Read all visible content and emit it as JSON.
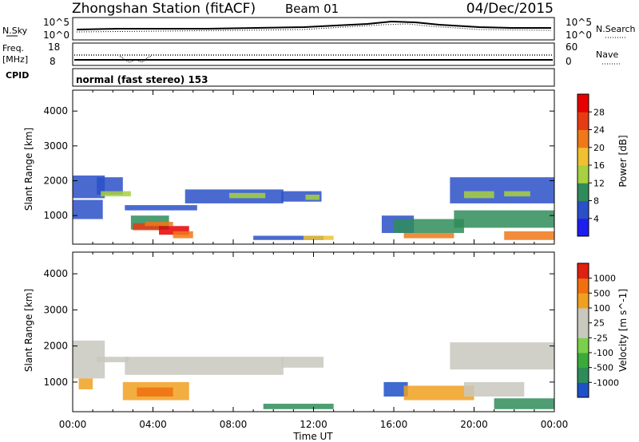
{
  "header": {
    "station": "Zhongshan Station (fitACF)",
    "beam": "Beam 01",
    "date": "04/Dec/2015"
  },
  "status_panels": {
    "nsky_label": "N.Sky",
    "nsky_ticks": [
      "10^5",
      "10^0"
    ],
    "nsearch_label": "N.Search",
    "nsearch_ticks": [
      "10^5",
      "10^0"
    ],
    "freq_label": "Freq.",
    "freq_unit": "[MHz]",
    "freq_ticks": [
      "18",
      "8"
    ],
    "nave_label": "Nave",
    "nave_ticks": [
      "60",
      "0"
    ],
    "cpid_label": "CPID",
    "cpid_text": "normal (fast stereo) 153"
  },
  "chart_data": [
    {
      "type": "heatmap",
      "name": "power",
      "ylabel": "Slant Range [km]",
      "yticks": [
        "1000",
        "2000",
        "3000",
        "4000"
      ],
      "ylim": [
        180,
        4600
      ],
      "xlim": [
        0,
        24
      ],
      "colorbar_label": "Power [dB]",
      "colorbar_ticks": [
        "4",
        "8",
        "12",
        "16",
        "20",
        "24",
        "28"
      ],
      "colorbar_colors": [
        "#1e1ef0",
        "#2a50c8",
        "#2f8c5a",
        "#a8d040",
        "#f0c030",
        "#f07818",
        "#e63c14",
        "#e60000"
      ],
      "regions": [
        {
          "t0": 0.0,
          "t1": 1.6,
          "r0": 1500,
          "r1": 2150,
          "c": "#2a50c8"
        },
        {
          "t0": 0.0,
          "t1": 1.5,
          "r0": 900,
          "r1": 1450,
          "c": "#2a50c8"
        },
        {
          "t0": 1.2,
          "t1": 2.5,
          "r0": 1600,
          "r1": 2100,
          "c": "#2a50c8"
        },
        {
          "t0": 1.4,
          "t1": 2.9,
          "r0": 1550,
          "r1": 1700,
          "c": "#a8d040"
        },
        {
          "t0": 2.6,
          "t1": 6.2,
          "r0": 1150,
          "r1": 1300,
          "c": "#2a50c8"
        },
        {
          "t0": 2.9,
          "t1": 4.8,
          "r0": 600,
          "r1": 1000,
          "c": "#2f8c5a"
        },
        {
          "t0": 3.0,
          "t1": 4.4,
          "r0": 580,
          "r1": 780,
          "c": "#e63c14"
        },
        {
          "t0": 3.6,
          "t1": 5.0,
          "r0": 700,
          "r1": 820,
          "c": "#f07818"
        },
        {
          "t0": 4.3,
          "t1": 5.8,
          "r0": 450,
          "r1": 700,
          "c": "#e60000"
        },
        {
          "t0": 5.0,
          "t1": 6.0,
          "r0": 350,
          "r1": 550,
          "c": "#f07818"
        },
        {
          "t0": 5.6,
          "t1": 10.5,
          "r0": 1350,
          "r1": 1750,
          "c": "#2a50c8"
        },
        {
          "t0": 7.8,
          "t1": 9.6,
          "r0": 1500,
          "r1": 1650,
          "c": "#a8d040"
        },
        {
          "t0": 10.4,
          "t1": 12.4,
          "r0": 1400,
          "r1": 1700,
          "c": "#2a50c8"
        },
        {
          "t0": 11.6,
          "t1": 12.3,
          "r0": 1450,
          "r1": 1600,
          "c": "#a8d040"
        },
        {
          "t0": 9.0,
          "t1": 12.5,
          "r0": 300,
          "r1": 420,
          "c": "#2a50c8"
        },
        {
          "t0": 11.5,
          "t1": 13.0,
          "r0": 300,
          "r1": 420,
          "c": "#f0c030"
        },
        {
          "t0": 15.4,
          "t1": 17.0,
          "r0": 500,
          "r1": 1000,
          "c": "#2a50c8"
        },
        {
          "t0": 16.0,
          "t1": 19.5,
          "r0": 500,
          "r1": 900,
          "c": "#2f8c5a"
        },
        {
          "t0": 16.5,
          "t1": 19.0,
          "r0": 350,
          "r1": 500,
          "c": "#f07818"
        },
        {
          "t0": 18.8,
          "t1": 24.0,
          "r0": 1350,
          "r1": 2100,
          "c": "#2a50c8"
        },
        {
          "t0": 19.5,
          "t1": 21.0,
          "r0": 1500,
          "r1": 1700,
          "c": "#a8d040"
        },
        {
          "t0": 21.5,
          "t1": 22.8,
          "r0": 1550,
          "r1": 1700,
          "c": "#a8d040"
        },
        {
          "t0": 19.0,
          "t1": 24.0,
          "r0": 650,
          "r1": 1150,
          "c": "#2f8c5a"
        },
        {
          "t0": 21.5,
          "t1": 24.0,
          "r0": 300,
          "r1": 550,
          "c": "#f07818"
        }
      ]
    },
    {
      "type": "heatmap",
      "name": "velocity",
      "ylabel": "Slant Range [km]",
      "yticks": [
        "1000",
        "2000",
        "3000",
        "4000"
      ],
      "ylim": [
        180,
        4600
      ],
      "xlim": [
        0,
        24
      ],
      "xticks": [
        "00:00",
        "04:00",
        "08:00",
        "12:00",
        "16:00",
        "20:00",
        "00:00"
      ],
      "xlabel": "Time UT",
      "colorbar_label": "Velocity [m s^-1]",
      "colorbar_ticks": [
        "1000",
        "500",
        "100",
        "25",
        "-25",
        "-100",
        "-500",
        "-1000"
      ],
      "colorbar_colors": [
        "#1e50c8",
        "#2f8c5a",
        "#3aaa3a",
        "#7ad04a",
        "#c8c8be",
        "#c8c8be",
        "#f0a020",
        "#f07010",
        "#e02010"
      ],
      "regions": [
        {
          "t0": 0.0,
          "t1": 1.6,
          "r0": 1100,
          "r1": 2150,
          "c": "#c8c8be"
        },
        {
          "t0": 1.2,
          "t1": 2.8,
          "r0": 1550,
          "r1": 1700,
          "c": "#c8c8be"
        },
        {
          "t0": 2.6,
          "t1": 10.5,
          "r0": 1200,
          "r1": 1700,
          "c": "#c8c8be"
        },
        {
          "t0": 10.4,
          "t1": 12.5,
          "r0": 1400,
          "r1": 1700,
          "c": "#c8c8be"
        },
        {
          "t0": 0.3,
          "t1": 1.0,
          "r0": 800,
          "r1": 1100,
          "c": "#f0a020"
        },
        {
          "t0": 2.5,
          "t1": 5.8,
          "r0": 500,
          "r1": 1000,
          "c": "#f0a020"
        },
        {
          "t0": 3.2,
          "t1": 5.0,
          "r0": 600,
          "r1": 850,
          "c": "#f07010"
        },
        {
          "t0": 9.5,
          "t1": 13.0,
          "r0": 250,
          "r1": 400,
          "c": "#2f8c5a"
        },
        {
          "t0": 15.5,
          "t1": 16.7,
          "r0": 600,
          "r1": 1000,
          "c": "#1e50c8"
        },
        {
          "t0": 16.5,
          "t1": 20.0,
          "r0": 500,
          "r1": 900,
          "c": "#f0a020"
        },
        {
          "t0": 18.8,
          "t1": 24.0,
          "r0": 1350,
          "r1": 2100,
          "c": "#c8c8be"
        },
        {
          "t0": 19.5,
          "t1": 22.5,
          "r0": 600,
          "r1": 1000,
          "c": "#c8c8be"
        },
        {
          "t0": 21.0,
          "t1": 24.0,
          "r0": 250,
          "r1": 550,
          "c": "#2f8c5a"
        }
      ]
    }
  ]
}
